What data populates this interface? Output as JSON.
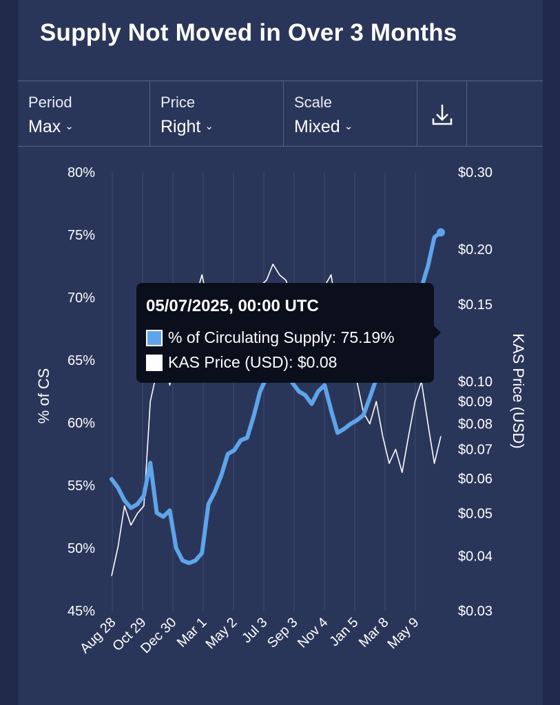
{
  "title": "Supply Not Moved in Over 3 Months",
  "toolbar": {
    "period": {
      "label": "Period",
      "value": "Max"
    },
    "price": {
      "label": "Price",
      "value": "Right"
    },
    "scale": {
      "label": "Scale",
      "value": "Mixed"
    },
    "download_icon": "download-icon"
  },
  "tooltip": {
    "date": "05/07/2025, 00:00 UTC",
    "supply_label": "% of Circulating Supply: 75.19%",
    "price_label": "KAS Price (USD): $0.08"
  },
  "colors": {
    "supply": "#5ea4ea",
    "price": "#ffffff",
    "background": "#2a3659",
    "grid": "#3d4a70"
  },
  "chart_data": {
    "type": "line",
    "x_ticks": [
      "Aug 28",
      "Oct 29",
      "Dec 30",
      "Mar 1",
      "May 2",
      "Jul 3",
      "Sep 3",
      "Nov 4",
      "Jan 5",
      "Mar 8",
      "May 9"
    ],
    "left_axis": {
      "label": "% of CS",
      "ticks": [
        "80%",
        "75%",
        "70%",
        "65%",
        "60%",
        "55%",
        "50%",
        "45%"
      ],
      "range": [
        45,
        80
      ]
    },
    "right_axis": {
      "label": "KAS Price (USD)",
      "scale": "log",
      "ticks": [
        "$0.30",
        "$0.20",
        "$0.15",
        "$0.10",
        "$0.09",
        "$0.08",
        "$0.07",
        "$0.06",
        "$0.05",
        "$0.04",
        "$0.03"
      ],
      "tick_values": [
        0.3,
        0.2,
        0.15,
        0.1,
        0.09,
        0.08,
        0.07,
        0.06,
        0.05,
        0.04,
        0.03
      ],
      "range": [
        0.03,
        0.3
      ]
    },
    "series": [
      {
        "name": "% of Circulating Supply",
        "axis": "left",
        "values": [
          55.5,
          54.8,
          53.8,
          53.2,
          53.5,
          54.2,
          56.8,
          52.8,
          52.5,
          53.0,
          50.0,
          49.0,
          48.8,
          49.0,
          49.6,
          53.5,
          54.5,
          55.8,
          57.5,
          57.8,
          58.6,
          58.8,
          60.5,
          62.5,
          63.6,
          64.2,
          64.5,
          64.0,
          63.2,
          62.5,
          62.2,
          61.5,
          62.5,
          63.0,
          61.0,
          59.2,
          59.5,
          59.9,
          60.2,
          60.6,
          62.0,
          63.5,
          63.4,
          64.2,
          65.0,
          66.8,
          67.8,
          69.2,
          70.8,
          72.5,
          74.8,
          75.19
        ]
      },
      {
        "name": "KAS Price (USD)",
        "axis": "right",
        "values": [
          0.036,
          0.042,
          0.052,
          0.047,
          0.05,
          0.052,
          0.09,
          0.105,
          0.115,
          0.098,
          0.112,
          0.102,
          0.11,
          0.155,
          0.175,
          0.15,
          0.13,
          0.125,
          0.135,
          0.14,
          0.12,
          0.125,
          0.13,
          0.165,
          0.17,
          0.185,
          0.175,
          0.17,
          0.155,
          0.15,
          0.165,
          0.13,
          0.14,
          0.165,
          0.175,
          0.14,
          0.12,
          0.105,
          0.1,
          0.085,
          0.08,
          0.09,
          0.075,
          0.065,
          0.07,
          0.062,
          0.075,
          0.09,
          0.1,
          0.08,
          0.065,
          0.075
        ]
      }
    ],
    "grid": true
  }
}
